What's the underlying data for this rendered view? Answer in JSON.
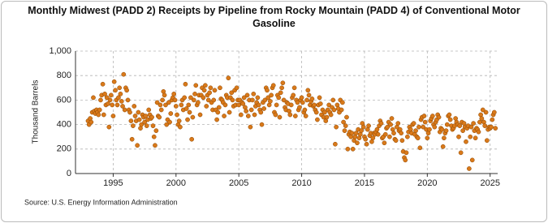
{
  "chart_data": {
    "type": "scatter",
    "title": "Monthly Midwest (PADD 2) Receipts by Pipeline from Rocky Mountain (PADD 4) of Conventional Motor Gasoline",
    "y_label": "Thousand Barrels",
    "source": "Source: U.S. Energy Information Administration",
    "xlim": [
      1992,
      2025.6
    ],
    "xticks": [
      1995,
      2000,
      2005,
      2010,
      2015,
      2020,
      2025
    ],
    "ylim": [
      0,
      1000
    ],
    "yticks": [
      0,
      200,
      400,
      600,
      800,
      {
        "value": 1000,
        "label": "1,000"
      }
    ],
    "grid": true,
    "series": [
      {
        "name": "Receipts",
        "color": "#d9791a",
        "x": [
          1993,
          1993.08,
          1993.17,
          1993.25,
          1993.33,
          1993.42,
          1993.5,
          1993.58,
          1993.67,
          1993.75,
          1993.83,
          1993.92,
          1994,
          1994.08,
          1994.17,
          1994.25,
          1994.33,
          1994.42,
          1994.5,
          1994.58,
          1994.67,
          1994.75,
          1994.83,
          1994.92,
          1995,
          1995.08,
          1995.17,
          1995.25,
          1995.33,
          1995.42,
          1995.5,
          1995.58,
          1995.67,
          1995.75,
          1995.83,
          1995.92,
          1996,
          1996.08,
          1996.17,
          1996.25,
          1996.33,
          1996.42,
          1996.5,
          1996.58,
          1996.67,
          1996.75,
          1996.83,
          1996.92,
          1997,
          1997.08,
          1997.17,
          1997.25,
          1997.33,
          1997.42,
          1997.5,
          1997.58,
          1997.67,
          1997.75,
          1997.83,
          1997.92,
          1998,
          1998.08,
          1998.17,
          1998.25,
          1998.33,
          1998.42,
          1998.5,
          1998.58,
          1998.67,
          1998.75,
          1998.83,
          1998.92,
          1999,
          1999.08,
          1999.17,
          1999.25,
          1999.33,
          1999.42,
          1999.5,
          1999.58,
          1999.67,
          1999.75,
          1999.83,
          1999.92,
          2000,
          2000.08,
          2000.17,
          2000.25,
          2000.33,
          2000.42,
          2000.5,
          2000.58,
          2000.67,
          2000.75,
          2000.83,
          2000.92,
          2001,
          2001.08,
          2001.17,
          2001.25,
          2001.33,
          2001.42,
          2001.5,
          2001.58,
          2001.67,
          2001.75,
          2001.83,
          2001.92,
          2002,
          2002.08,
          2002.17,
          2002.25,
          2002.33,
          2002.42,
          2002.5,
          2002.58,
          2002.67,
          2002.75,
          2002.83,
          2002.92,
          2003,
          2003.08,
          2003.17,
          2003.25,
          2003.33,
          2003.42,
          2003.5,
          2003.58,
          2003.67,
          2003.75,
          2003.83,
          2003.92,
          2004,
          2004.08,
          2004.17,
          2004.25,
          2004.33,
          2004.42,
          2004.5,
          2004.58,
          2004.67,
          2004.75,
          2004.83,
          2004.92,
          2005,
          2005.08,
          2005.17,
          2005.25,
          2005.33,
          2005.42,
          2005.5,
          2005.58,
          2005.67,
          2005.75,
          2005.83,
          2005.92,
          2006,
          2006.08,
          2006.17,
          2006.25,
          2006.33,
          2006.42,
          2006.5,
          2006.58,
          2006.67,
          2006.75,
          2006.83,
          2006.92,
          2007,
          2007.08,
          2007.17,
          2007.25,
          2007.33,
          2007.42,
          2007.5,
          2007.58,
          2007.67,
          2007.75,
          2007.83,
          2007.92,
          2008,
          2008.08,
          2008.17,
          2008.25,
          2008.33,
          2008.42,
          2008.5,
          2008.58,
          2008.67,
          2008.75,
          2008.83,
          2008.92,
          2009,
          2009.08,
          2009.17,
          2009.25,
          2009.33,
          2009.42,
          2009.5,
          2009.58,
          2009.67,
          2009.75,
          2009.83,
          2009.92,
          2010,
          2010.08,
          2010.17,
          2010.25,
          2010.33,
          2010.42,
          2010.5,
          2010.58,
          2010.67,
          2010.75,
          2010.83,
          2010.92,
          2011,
          2011.08,
          2011.17,
          2011.25,
          2011.33,
          2011.42,
          2011.5,
          2011.58,
          2011.67,
          2011.75,
          2011.83,
          2011.92,
          2012,
          2012.08,
          2012.17,
          2012.25,
          2012.33,
          2012.42,
          2012.5,
          2012.58,
          2012.67,
          2012.75,
          2012.83,
          2012.92,
          2013,
          2013.08,
          2013.17,
          2013.25,
          2013.33,
          2013.42,
          2013.5,
          2013.58,
          2013.67,
          2013.75,
          2013.83,
          2013.92,
          2014,
          2014.08,
          2014.17,
          2014.25,
          2014.33,
          2014.42,
          2014.5,
          2014.58,
          2014.67,
          2014.75,
          2014.83,
          2014.92,
          2015,
          2015.08,
          2015.17,
          2015.25,
          2015.33,
          2015.42,
          2015.5,
          2015.58,
          2015.67,
          2015.75,
          2015.83,
          2015.92,
          2016,
          2016.08,
          2016.17,
          2016.25,
          2016.33,
          2016.42,
          2016.5,
          2016.58,
          2016.67,
          2016.75,
          2016.83,
          2016.92,
          2017,
          2017.08,
          2017.17,
          2017.25,
          2017.33,
          2017.42,
          2017.5,
          2017.58,
          2017.67,
          2017.75,
          2017.83,
          2017.92,
          2018,
          2018.08,
          2018.17,
          2018.25,
          2018.33,
          2018.42,
          2018.5,
          2018.58,
          2018.67,
          2018.75,
          2018.83,
          2018.92,
          2019,
          2019.08,
          2019.17,
          2019.25,
          2019.33,
          2019.42,
          2019.5,
          2019.58,
          2019.67,
          2019.75,
          2019.83,
          2019.92,
          2020,
          2020.08,
          2020.17,
          2020.25,
          2020.33,
          2020.42,
          2020.5,
          2020.58,
          2020.67,
          2020.75,
          2020.83,
          2020.92,
          2021,
          2021.08,
          2021.17,
          2021.25,
          2021.33,
          2021.42,
          2021.5,
          2021.58,
          2021.67,
          2021.75,
          2021.83,
          2021.92,
          2022,
          2022.08,
          2022.17,
          2022.25,
          2022.33,
          2022.42,
          2022.5,
          2022.58,
          2022.67,
          2022.75,
          2022.83,
          2022.92,
          2023,
          2023.08,
          2023.17,
          2023.25,
          2023.33,
          2023.42,
          2023.5,
          2023.58,
          2023.67,
          2023.75,
          2023.83,
          2023.92,
          2024,
          2024.08,
          2024.17,
          2024.25,
          2024.33,
          2024.42,
          2024.5,
          2024.58,
          2024.67,
          2024.75,
          2024.83,
          2024.92,
          2025,
          2025.08,
          2025.17,
          2025.25,
          2025.33,
          2025.42
        ],
        "values": [
          430,
          400,
          450,
          420,
          500,
          620,
          510,
          490,
          520,
          500,
          480,
          520,
          600,
          640,
          730,
          480,
          650,
          560,
          620,
          570,
          380,
          600,
          640,
          560,
          470,
          750,
          680,
          600,
          560,
          620,
          700,
          650,
          590,
          550,
          810,
          520,
          700,
          680,
          600,
          520,
          500,
          430,
          280,
          390,
          550,
          470,
          430,
          230,
          500,
          440,
          370,
          400,
          480,
          460,
          420,
          470,
          390,
          440,
          520,
          480,
          450,
          460,
          390,
          300,
          230,
          350,
          580,
          470,
          460,
          560,
          520,
          600,
          670,
          640,
          560,
          400,
          440,
          580,
          420,
          490,
          600,
          620,
          650,
          600,
          550,
          480,
          400,
          430,
          380,
          560,
          600,
          520,
          620,
          730,
          530,
          440,
          560,
          500,
          620,
          280,
          460,
          600,
          650,
          720,
          560,
          580,
          640,
          480,
          640,
          700,
          620,
          680,
          720,
          550,
          640,
          600,
          660,
          700,
          580,
          520,
          600,
          680,
          520,
          440,
          500,
          540,
          700,
          610,
          600,
          580,
          470,
          560,
          640,
          620,
          780,
          500,
          620,
          660,
          600,
          550,
          680,
          560,
          700,
          600,
          560,
          600,
          480,
          580,
          570,
          620,
          540,
          510,
          640,
          470,
          600,
          380,
          520,
          600,
          650,
          480,
          550,
          580,
          620,
          560,
          520,
          500,
          400,
          580,
          530,
          600,
          700,
          680,
          620,
          560,
          590,
          640,
          700,
          720,
          500,
          480,
          560,
          640,
          620,
          460,
          660,
          700,
          740,
          600,
          540,
          520,
          580,
          570,
          510,
          480,
          560,
          620,
          640,
          700,
          470,
          600,
          580,
          520,
          540,
          600,
          620,
          580,
          500,
          520,
          470,
          600,
          680,
          640,
          560,
          590,
          610,
          550,
          560,
          520,
          500,
          440,
          560,
          620,
          570,
          480,
          520,
          460,
          500,
          430,
          460,
          520,
          560,
          500,
          480,
          540,
          600,
          520,
          240,
          380,
          560,
          530,
          500,
          600,
          520,
          580,
          420,
          350,
          390,
          460,
          200,
          320,
          340,
          300,
          330,
          200,
          270,
          300,
          330,
          250,
          360,
          290,
          320,
          350,
          410,
          380,
          300,
          280,
          240,
          360,
          390,
          310,
          330,
          260,
          290,
          330,
          320,
          340,
          360,
          320,
          390,
          430,
          410,
          290,
          300,
          250,
          320,
          370,
          380,
          420,
          300,
          400,
          450,
          360,
          330,
          280,
          270,
          380,
          410,
          350,
          360,
          330,
          270,
          180,
          130,
          110,
          170,
          300,
          340,
          380,
          360,
          330,
          400,
          410,
          320,
          350,
          300,
          290,
          380,
          210,
          440,
          460,
          380,
          470,
          420,
          360,
          290,
          330,
          360,
          430,
          450,
          470,
          400,
          380,
          420,
          440,
          480,
          460,
          340,
          370,
          360,
          220,
          290,
          330,
          350,
          400,
          470,
          480,
          440,
          390,
          360,
          370,
          390,
          450,
          420,
          400,
          300,
          390,
          170,
          420,
          350,
          410,
          380,
          260,
          370,
          390,
          40,
          300,
          380,
          110,
          410,
          350,
          290,
          370,
          360,
          340,
          420,
          480,
          450,
          520,
          420,
          390,
          500,
          270,
          360,
          380,
          370,
          380,
          440,
          480,
          500,
          370
        ]
      }
    ]
  }
}
